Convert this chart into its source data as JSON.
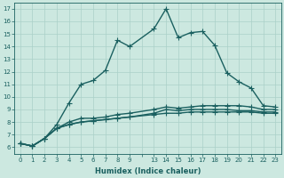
{
  "xlabel": "Humidex (Indice chaleur)",
  "background_color": "#cce8e0",
  "grid_color": "#aad0c8",
  "line_color": "#1a6060",
  "line_width": 1.0,
  "marker": "+",
  "marker_size": 4,
  "marker_lw": 0.8,
  "xtick_labels": [
    "0",
    "1",
    "2",
    "3",
    "4",
    "5",
    "6",
    "7",
    "8",
    "9",
    "",
    "13",
    "14",
    "15",
    "16",
    "17",
    "18",
    "19",
    "20",
    "21",
    "22",
    "23"
  ],
  "yticks": [
    6,
    7,
    8,
    9,
    10,
    11,
    12,
    13,
    14,
    15,
    16,
    17
  ],
  "ylim": [
    5.5,
    17.5
  ],
  "curves": [
    [
      6.3,
      6.1,
      6.7,
      7.8,
      9.5,
      11.0,
      11.3,
      12.1,
      14.5,
      14.0,
      null,
      15.4,
      17.0,
      14.7,
      15.1,
      15.2,
      14.1,
      11.9,
      11.2,
      10.7,
      9.3,
      9.2
    ],
    [
      6.3,
      6.1,
      6.7,
      7.5,
      8.0,
      8.3,
      8.3,
      8.4,
      8.6,
      8.7,
      null,
      9.0,
      9.2,
      9.1,
      9.2,
      9.3,
      9.3,
      9.3,
      9.3,
      9.2,
      9.0,
      9.0
    ],
    [
      6.3,
      6.1,
      6.7,
      7.5,
      7.8,
      8.0,
      8.1,
      8.2,
      8.3,
      8.4,
      null,
      8.6,
      8.7,
      8.7,
      8.8,
      8.8,
      8.8,
      8.8,
      8.8,
      8.8,
      8.7,
      8.7
    ],
    [
      6.3,
      6.1,
      6.7,
      7.5,
      7.8,
      8.0,
      8.1,
      8.2,
      8.3,
      8.4,
      null,
      8.7,
      9.0,
      8.9,
      9.0,
      9.0,
      9.0,
      9.0,
      8.9,
      8.9,
      8.8,
      8.8
    ]
  ],
  "xlabel_fontsize": 6.0,
  "tick_fontsize": 5.0,
  "figwidth": 3.2,
  "figheight": 2.0,
  "dpi": 100
}
